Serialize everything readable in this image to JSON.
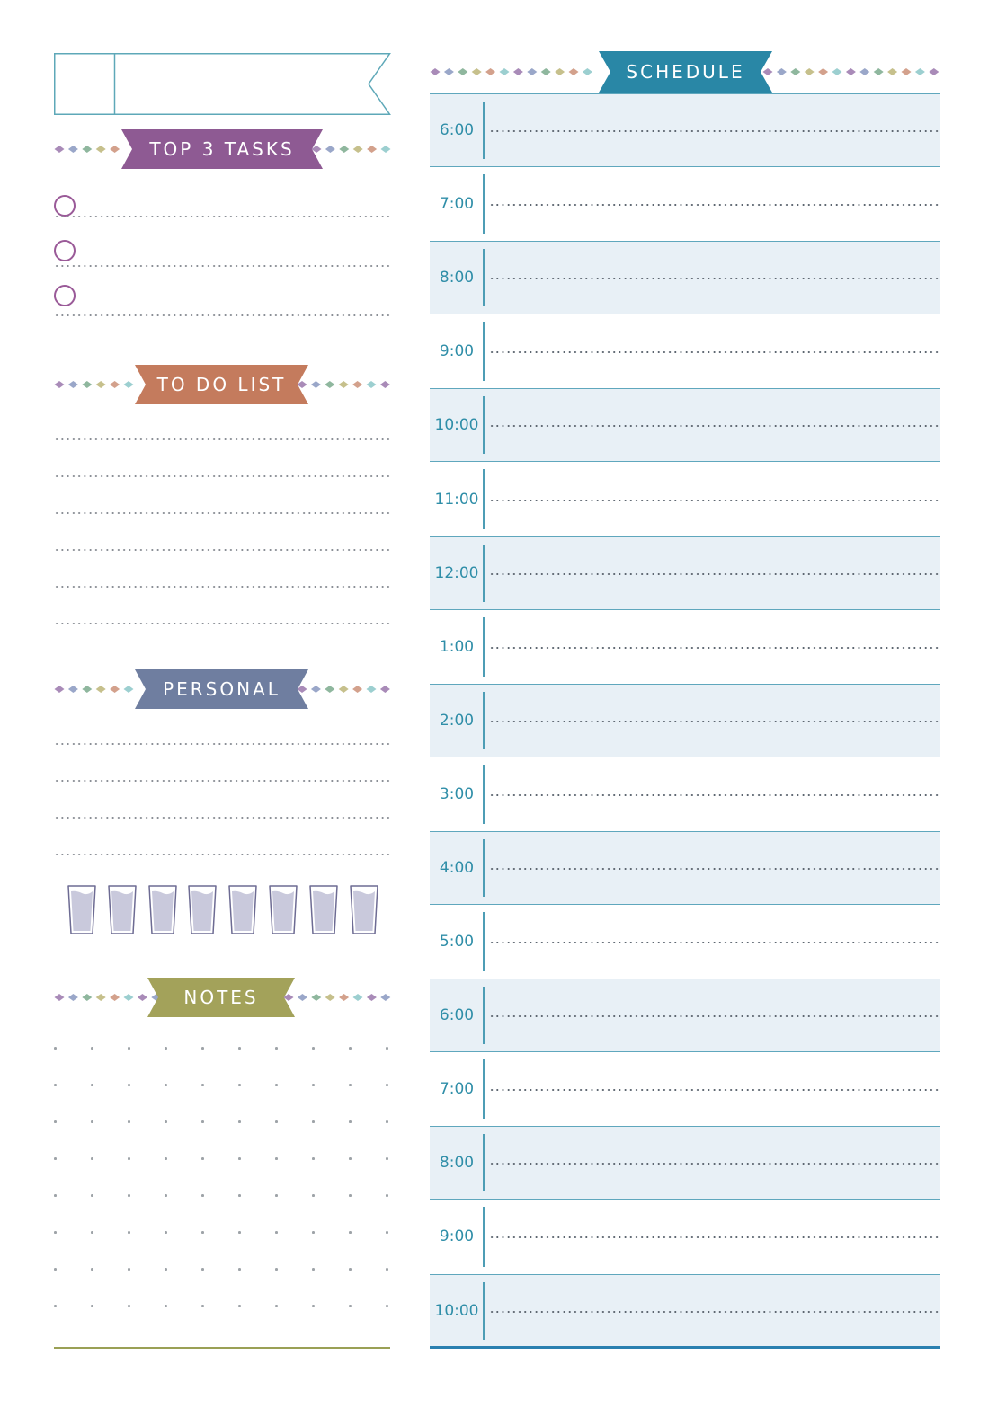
{
  "date_header": {
    "small_box_text": "",
    "large_box_text": ""
  },
  "sections": {
    "top_tasks": {
      "title": "TOP 3 TASKS",
      "color": "#8e5a93",
      "items": [
        "",
        "",
        ""
      ]
    },
    "todo": {
      "title": "TO DO LIST",
      "color": "#c47b5d"
    },
    "personal": {
      "title": "PERSONAL",
      "color": "#6f7ea0"
    },
    "notes": {
      "title": "NOTES",
      "color": "#a3a25a"
    },
    "schedule": {
      "title": "SCHEDULE",
      "color": "#2987a6"
    }
  },
  "water_glasses": {
    "count": 8,
    "fill_color": "#c9c9dc",
    "outline_color": "#6d6b93"
  },
  "schedule_times": [
    "6:00",
    "7:00",
    "8:00",
    "9:00",
    "10:00",
    "11:00",
    "12:00",
    "1:00",
    "2:00",
    "3:00",
    "4:00",
    "5:00",
    "6:00",
    "7:00",
    "8:00",
    "9:00",
    "10:00"
  ],
  "diamond_colors": [
    "#a98bb8",
    "#9aa7c9",
    "#8fb79e",
    "#c6c08c",
    "#d3a18c",
    "#9ccfd0"
  ]
}
